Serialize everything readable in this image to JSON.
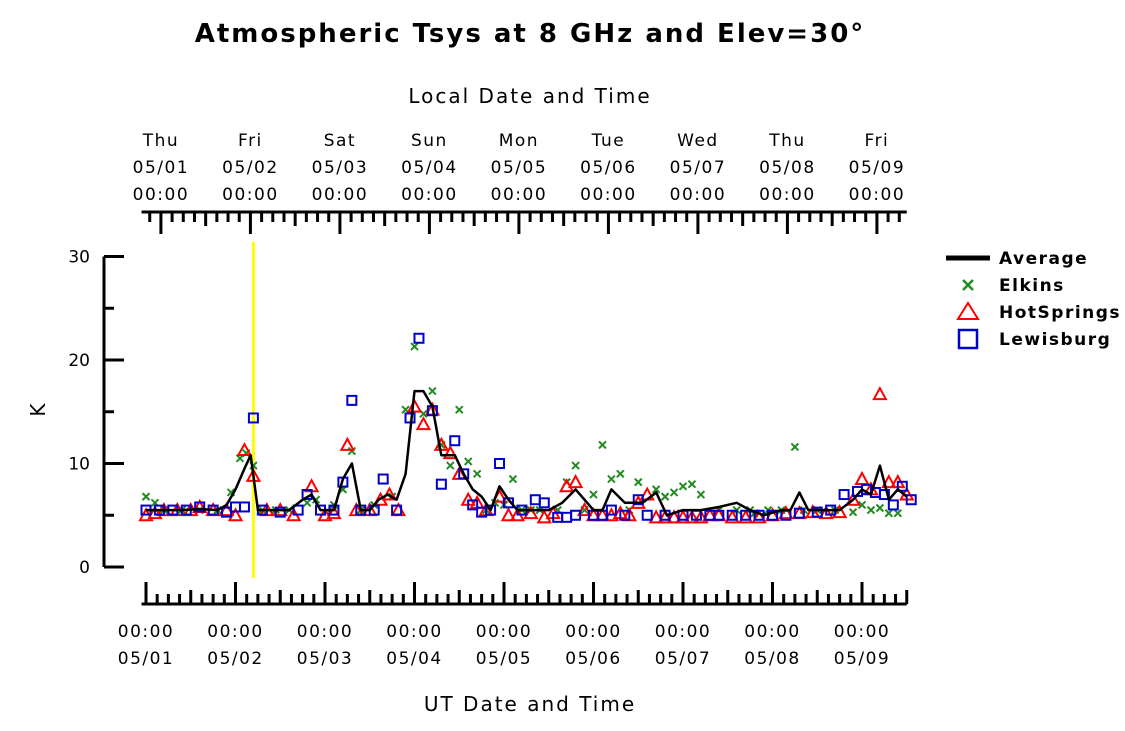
{
  "chart_data": {
    "type": "scatter",
    "title": "Atmospheric Tsys at 8 GHz and Elev=30°",
    "top_axis": {
      "label": "Local Date and Time",
      "ticks": [
        {
          "day": "Thu",
          "date": "05/01",
          "time": "00:00"
        },
        {
          "day": "Fri",
          "date": "05/02",
          "time": "00:00"
        },
        {
          "day": "Sat",
          "date": "05/03",
          "time": "00:00"
        },
        {
          "day": "Sun",
          "date": "05/04",
          "time": "00:00"
        },
        {
          "day": "Mon",
          "date": "05/05",
          "time": "00:00"
        },
        {
          "day": "Tue",
          "date": "05/06",
          "time": "00:00"
        },
        {
          "day": "Wed",
          "date": "05/07",
          "time": "00:00"
        },
        {
          "day": "Thu",
          "date": "05/08",
          "time": "00:00"
        },
        {
          "day": "Fri",
          "date": "05/09",
          "time": "00:00"
        }
      ]
    },
    "bottom_axis": {
      "label": "UT Date and Time",
      "ticks": [
        {
          "time": "00:00",
          "date": "05/01"
        },
        {
          "time": "00:00",
          "date": "05/02"
        },
        {
          "time": "00:00",
          "date": "05/03"
        },
        {
          "time": "00:00",
          "date": "05/04"
        },
        {
          "time": "00:00",
          "date": "05/05"
        },
        {
          "time": "00:00",
          "date": "05/06"
        },
        {
          "time": "00:00",
          "date": "05/07"
        },
        {
          "time": "00:00",
          "date": "05/08"
        },
        {
          "time": "00:00",
          "date": "05/09"
        }
      ]
    },
    "ylabel": "K",
    "ylim": [
      0,
      30
    ],
    "yticks": [
      "0",
      "10",
      "20",
      "30"
    ],
    "x_units": "UT days after 05/01 00:00",
    "xlim": [
      -0.05,
      8.5
    ],
    "marker_time": 1.2,
    "grid": false,
    "legend": "top-right",
    "colors": {
      "average": "#000000",
      "elkins": "#228b22",
      "hotsprings": "#ff0000",
      "lewisburg": "#0000cc",
      "marker": "#ffff00"
    },
    "series": [
      {
        "name": "Average",
        "kind": "line",
        "points": [
          [
            0.0,
            5.5
          ],
          [
            0.2,
            5.5
          ],
          [
            0.4,
            5.5
          ],
          [
            0.6,
            5.6
          ],
          [
            0.8,
            5.5
          ],
          [
            0.9,
            6.0
          ],
          [
            1.0,
            7.5
          ],
          [
            1.1,
            9.5
          ],
          [
            1.17,
            10.8
          ],
          [
            1.25,
            5.5
          ],
          [
            1.4,
            5.5
          ],
          [
            1.6,
            5.5
          ],
          [
            1.75,
            6.5
          ],
          [
            1.85,
            7.0
          ],
          [
            1.95,
            5.5
          ],
          [
            2.1,
            5.5
          ],
          [
            2.2,
            8.5
          ],
          [
            2.3,
            10.0
          ],
          [
            2.4,
            5.5
          ],
          [
            2.5,
            5.5
          ],
          [
            2.6,
            6.5
          ],
          [
            2.7,
            7.0
          ],
          [
            2.8,
            6.5
          ],
          [
            2.9,
            9.0
          ],
          [
            3.0,
            17.0
          ],
          [
            3.1,
            17.0
          ],
          [
            3.2,
            15.5
          ],
          [
            3.3,
            10.8
          ],
          [
            3.45,
            10.8
          ],
          [
            3.55,
            9.0
          ],
          [
            3.65,
            7.5
          ],
          [
            3.75,
            6.8
          ],
          [
            3.85,
            5.5
          ],
          [
            3.95,
            7.8
          ],
          [
            4.05,
            6.5
          ],
          [
            4.15,
            5.5
          ],
          [
            4.3,
            5.5
          ],
          [
            4.5,
            5.5
          ],
          [
            4.65,
            6.2
          ],
          [
            4.8,
            7.5
          ],
          [
            4.9,
            6.5
          ],
          [
            5.0,
            5.5
          ],
          [
            5.1,
            5.5
          ],
          [
            5.2,
            7.5
          ],
          [
            5.35,
            6.2
          ],
          [
            5.55,
            6.2
          ],
          [
            5.7,
            7.2
          ],
          [
            5.82,
            5.0
          ],
          [
            6.0,
            5.5
          ],
          [
            6.2,
            5.5
          ],
          [
            6.4,
            5.8
          ],
          [
            6.6,
            6.2
          ],
          [
            6.75,
            5.5
          ],
          [
            6.9,
            5.0
          ],
          [
            7.1,
            5.5
          ],
          [
            7.2,
            5.5
          ],
          [
            7.3,
            7.2
          ],
          [
            7.4,
            5.5
          ],
          [
            7.6,
            5.5
          ],
          [
            7.75,
            5.5
          ],
          [
            7.9,
            6.5
          ],
          [
            8.0,
            7.5
          ],
          [
            8.1,
            7.0
          ],
          [
            8.2,
            9.8
          ],
          [
            8.3,
            6.5
          ],
          [
            8.4,
            7.5
          ],
          [
            8.5,
            6.8
          ]
        ]
      },
      {
        "name": "Elkins",
        "kind": "x-marker",
        "points": [
          [
            0.0,
            6.8
          ],
          [
            0.1,
            6.2
          ],
          [
            0.2,
            5.5
          ],
          [
            0.4,
            5.5
          ],
          [
            0.6,
            5.5
          ],
          [
            0.8,
            5.5
          ],
          [
            0.95,
            7.2
          ],
          [
            1.05,
            10.5
          ],
          [
            1.12,
            11.0
          ],
          [
            1.2,
            9.8
          ],
          [
            1.3,
            5.5
          ],
          [
            1.45,
            5.5
          ],
          [
            1.6,
            5.5
          ],
          [
            1.8,
            6.2
          ],
          [
            1.9,
            6.5
          ],
          [
            2.1,
            6.0
          ],
          [
            2.2,
            7.5
          ],
          [
            2.3,
            11.2
          ],
          [
            2.4,
            5.5
          ],
          [
            2.55,
            6.0
          ],
          [
            2.75,
            6.8
          ],
          [
            2.9,
            15.2
          ],
          [
            3.0,
            21.3
          ],
          [
            3.1,
            14.8
          ],
          [
            3.2,
            17.0
          ],
          [
            3.3,
            11.8
          ],
          [
            3.4,
            9.8
          ],
          [
            3.5,
            15.2
          ],
          [
            3.6,
            10.2
          ],
          [
            3.7,
            9.0
          ],
          [
            3.8,
            5.5
          ],
          [
            3.9,
            6.2
          ],
          [
            4.0,
            6.0
          ],
          [
            4.1,
            8.5
          ],
          [
            4.2,
            5.5
          ],
          [
            4.3,
            5.5
          ],
          [
            4.4,
            5.5
          ],
          [
            4.6,
            5.5
          ],
          [
            4.7,
            8.2
          ],
          [
            4.8,
            9.8
          ],
          [
            4.9,
            5.5
          ],
          [
            5.0,
            7.0
          ],
          [
            5.1,
            11.8
          ],
          [
            5.2,
            8.5
          ],
          [
            5.3,
            9.0
          ],
          [
            5.4,
            5.5
          ],
          [
            5.5,
            8.2
          ],
          [
            5.7,
            7.5
          ],
          [
            5.8,
            6.8
          ],
          [
            5.9,
            7.2
          ],
          [
            6.0,
            7.8
          ],
          [
            6.1,
            8.0
          ],
          [
            6.2,
            7.0
          ],
          [
            6.4,
            5.5
          ],
          [
            6.6,
            5.5
          ],
          [
            6.75,
            5.5
          ],
          [
            6.8,
            5.2
          ],
          [
            6.95,
            5.5
          ],
          [
            7.1,
            5.5
          ],
          [
            7.25,
            11.6
          ],
          [
            7.35,
            5.5
          ],
          [
            7.5,
            5.5
          ],
          [
            7.7,
            5.5
          ],
          [
            7.9,
            5.3
          ],
          [
            8.0,
            6.0
          ],
          [
            8.1,
            5.5
          ],
          [
            8.2,
            5.7
          ],
          [
            8.3,
            5.2
          ],
          [
            8.4,
            5.2
          ]
        ]
      },
      {
        "name": "HotSprings",
        "kind": "triangle",
        "points": [
          [
            0.0,
            5.0
          ],
          [
            0.1,
            5.2
          ],
          [
            0.2,
            5.5
          ],
          [
            0.35,
            5.5
          ],
          [
            0.5,
            5.5
          ],
          [
            0.6,
            5.8
          ],
          [
            0.75,
            5.5
          ],
          [
            0.9,
            5.5
          ],
          [
            1.0,
            5.0
          ],
          [
            1.1,
            11.3
          ],
          [
            1.2,
            8.8
          ],
          [
            1.35,
            5.5
          ],
          [
            1.5,
            5.5
          ],
          [
            1.65,
            5.0
          ],
          [
            1.85,
            7.8
          ],
          [
            2.0,
            5.0
          ],
          [
            2.1,
            5.2
          ],
          [
            2.25,
            11.8
          ],
          [
            2.35,
            5.5
          ],
          [
            2.5,
            5.5
          ],
          [
            2.62,
            6.5
          ],
          [
            2.72,
            7.0
          ],
          [
            2.82,
            5.5
          ],
          [
            3.0,
            15.5
          ],
          [
            3.1,
            13.8
          ],
          [
            3.2,
            15.2
          ],
          [
            3.3,
            11.8
          ],
          [
            3.4,
            11.0
          ],
          [
            3.5,
            9.0
          ],
          [
            3.6,
            6.5
          ],
          [
            3.7,
            6.2
          ],
          [
            3.8,
            5.5
          ],
          [
            3.95,
            6.8
          ],
          [
            4.05,
            5.0
          ],
          [
            4.15,
            5.0
          ],
          [
            4.3,
            5.2
          ],
          [
            4.45,
            4.8
          ],
          [
            4.55,
            5.2
          ],
          [
            4.7,
            7.8
          ],
          [
            4.8,
            8.2
          ],
          [
            4.9,
            5.5
          ],
          [
            5.0,
            5.0
          ],
          [
            5.1,
            5.0
          ],
          [
            5.2,
            5.0
          ],
          [
            5.3,
            5.2
          ],
          [
            5.4,
            5.0
          ],
          [
            5.5,
            6.2
          ],
          [
            5.6,
            7.0
          ],
          [
            5.7,
            4.8
          ],
          [
            5.8,
            4.8
          ],
          [
            5.9,
            4.8
          ],
          [
            6.0,
            4.8
          ],
          [
            6.1,
            4.8
          ],
          [
            6.2,
            4.8
          ],
          [
            6.3,
            5.0
          ],
          [
            6.4,
            5.0
          ],
          [
            6.55,
            4.8
          ],
          [
            6.7,
            4.8
          ],
          [
            6.85,
            4.8
          ],
          [
            7.0,
            5.0
          ],
          [
            7.15,
            5.2
          ],
          [
            7.3,
            5.2
          ],
          [
            7.45,
            5.3
          ],
          [
            7.6,
            5.2
          ],
          [
            7.75,
            5.3
          ],
          [
            7.9,
            6.5
          ],
          [
            8.0,
            8.5
          ],
          [
            8.1,
            7.5
          ],
          [
            8.2,
            16.7
          ],
          [
            8.3,
            8.2
          ],
          [
            8.4,
            8.2
          ],
          [
            8.5,
            7.0
          ]
        ]
      },
      {
        "name": "Lewisburg",
        "kind": "square",
        "points": [
          [
            0.0,
            5.5
          ],
          [
            0.15,
            5.5
          ],
          [
            0.3,
            5.5
          ],
          [
            0.45,
            5.5
          ],
          [
            0.6,
            5.8
          ],
          [
            0.75,
            5.5
          ],
          [
            0.9,
            5.3
          ],
          [
            1.0,
            5.8
          ],
          [
            1.1,
            5.8
          ],
          [
            1.2,
            14.4
          ],
          [
            1.3,
            5.5
          ],
          [
            1.5,
            5.3
          ],
          [
            1.7,
            5.5
          ],
          [
            1.8,
            7.0
          ],
          [
            1.95,
            5.5
          ],
          [
            2.1,
            5.5
          ],
          [
            2.2,
            8.2
          ],
          [
            2.3,
            16.1
          ],
          [
            2.4,
            5.5
          ],
          [
            2.55,
            5.5
          ],
          [
            2.65,
            8.5
          ],
          [
            2.8,
            5.5
          ],
          [
            2.95,
            14.4
          ],
          [
            3.05,
            22.1
          ],
          [
            3.2,
            15.1
          ],
          [
            3.3,
            8.0
          ],
          [
            3.45,
            12.2
          ],
          [
            3.55,
            9.0
          ],
          [
            3.65,
            6.0
          ],
          [
            3.75,
            5.3
          ],
          [
            3.85,
            5.5
          ],
          [
            3.95,
            10.0
          ],
          [
            4.05,
            6.2
          ],
          [
            4.2,
            5.5
          ],
          [
            4.35,
            6.5
          ],
          [
            4.45,
            6.2
          ],
          [
            4.6,
            4.8
          ],
          [
            4.7,
            4.8
          ],
          [
            4.8,
            5.0
          ],
          [
            5.0,
            5.0
          ],
          [
            5.1,
            5.0
          ],
          [
            5.2,
            5.5
          ],
          [
            5.35,
            5.0
          ],
          [
            5.5,
            6.5
          ],
          [
            5.6,
            5.0
          ],
          [
            5.8,
            5.0
          ],
          [
            6.0,
            5.0
          ],
          [
            6.15,
            5.0
          ],
          [
            6.3,
            5.0
          ],
          [
            6.4,
            5.0
          ],
          [
            6.55,
            5.0
          ],
          [
            6.7,
            5.0
          ],
          [
            6.85,
            5.0
          ],
          [
            7.0,
            5.0
          ],
          [
            7.15,
            5.0
          ],
          [
            7.3,
            5.2
          ],
          [
            7.5,
            5.3
          ],
          [
            7.65,
            5.5
          ],
          [
            7.8,
            7.0
          ],
          [
            7.95,
            7.3
          ],
          [
            8.05,
            7.5
          ],
          [
            8.15,
            7.2
          ],
          [
            8.25,
            7.0
          ],
          [
            8.35,
            6.0
          ],
          [
            8.45,
            7.8
          ],
          [
            8.55,
            6.5
          ]
        ]
      }
    ]
  }
}
